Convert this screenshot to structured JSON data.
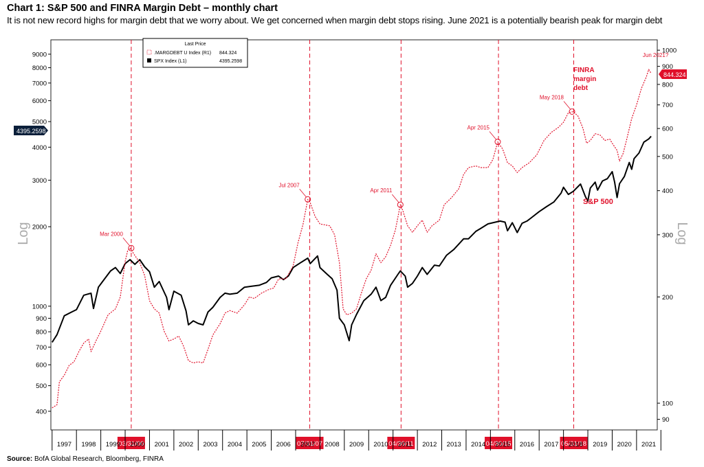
{
  "header": {
    "title": "Chart 1: S&P 500 and FINRA Margin Debt – monthly chart",
    "subtitle": "It is not new record highs for margin debt that we worry about. We get concerned when margin debt stops rising. June 2021 is a potentially bearish peak for margin debt"
  },
  "source": {
    "label": "Source:",
    "text": "BofA Global Research, Bloomberg, FINRA"
  },
  "chart_data": {
    "type": "line",
    "left_axis": {
      "label": "Log",
      "scale": "log",
      "ticks": [
        400,
        500,
        600,
        700,
        800,
        900,
        1000,
        2000,
        3000,
        4000,
        5000,
        6000,
        7000,
        8000,
        9000
      ],
      "ylim": [
        340,
        10200
      ]
    },
    "right_axis": {
      "label": "Log",
      "scale": "log",
      "ticks": [
        90,
        100,
        200,
        300,
        400,
        500,
        600,
        700,
        800,
        900,
        1000
      ],
      "ylim": [
        84,
        1070
      ]
    },
    "x_axis": {
      "years": [
        1997,
        1998,
        1999,
        2000,
        2001,
        2002,
        2003,
        2004,
        2005,
        2006,
        2007,
        2008,
        2009,
        2010,
        2011,
        2012,
        2013,
        2014,
        2015,
        2016,
        2017,
        2018,
        2019,
        2020,
        2021
      ],
      "xlim": [
        1996.95,
        2021.85
      ]
    },
    "legend": {
      "title": "Last Price",
      "position": "top-left",
      "entries": [
        {
          "label": ".MARGDEBT U Index  (R1)",
          "value": "844.324"
        },
        {
          "label": "SPX Index  (L1)",
          "value": "4395.2598"
        }
      ]
    },
    "series": [
      {
        "name": "SPX Index",
        "axis": "left",
        "color": "#000000",
        "style": "solid",
        "last_value": "4395.2598",
        "points": [
          [
            1997.0,
            730
          ],
          [
            1997.2,
            780
          ],
          [
            1997.5,
            920
          ],
          [
            1997.8,
            950
          ],
          [
            1998.0,
            970
          ],
          [
            1998.3,
            1100
          ],
          [
            1998.6,
            1120
          ],
          [
            1998.7,
            980
          ],
          [
            1998.9,
            1180
          ],
          [
            1999.1,
            1250
          ],
          [
            1999.4,
            1360
          ],
          [
            1999.6,
            1400
          ],
          [
            1999.8,
            1330
          ],
          [
            2000.0,
            1450
          ],
          [
            2000.2,
            1500
          ],
          [
            2000.4,
            1440
          ],
          [
            2000.6,
            1500
          ],
          [
            2000.8,
            1410
          ],
          [
            2001.0,
            1350
          ],
          [
            2001.2,
            1180
          ],
          [
            2001.4,
            1240
          ],
          [
            2001.7,
            1080
          ],
          [
            2001.8,
            970
          ],
          [
            2002.0,
            1140
          ],
          [
            2002.3,
            1100
          ],
          [
            2002.5,
            960
          ],
          [
            2002.6,
            850
          ],
          [
            2002.8,
            880
          ],
          [
            2003.0,
            860
          ],
          [
            2003.2,
            850
          ],
          [
            2003.4,
            950
          ],
          [
            2003.6,
            990
          ],
          [
            2003.9,
            1080
          ],
          [
            2004.1,
            1120
          ],
          [
            2004.3,
            1110
          ],
          [
            2004.6,
            1120
          ],
          [
            2004.9,
            1180
          ],
          [
            2005.2,
            1190
          ],
          [
            2005.5,
            1200
          ],
          [
            2005.8,
            1230
          ],
          [
            2006.0,
            1280
          ],
          [
            2006.3,
            1300
          ],
          [
            2006.5,
            1260
          ],
          [
            2006.7,
            1300
          ],
          [
            2006.9,
            1400
          ],
          [
            2007.2,
            1460
          ],
          [
            2007.5,
            1520
          ],
          [
            2007.6,
            1450
          ],
          [
            2007.9,
            1550
          ],
          [
            2008.0,
            1400
          ],
          [
            2008.3,
            1320
          ],
          [
            2008.5,
            1270
          ],
          [
            2008.7,
            1150
          ],
          [
            2008.8,
            900
          ],
          [
            2009.0,
            850
          ],
          [
            2009.2,
            740
          ],
          [
            2009.3,
            850
          ],
          [
            2009.5,
            930
          ],
          [
            2009.8,
            1050
          ],
          [
            2010.1,
            1110
          ],
          [
            2010.3,
            1180
          ],
          [
            2010.5,
            1050
          ],
          [
            2010.7,
            1080
          ],
          [
            2010.9,
            1200
          ],
          [
            2011.2,
            1320
          ],
          [
            2011.3,
            1360
          ],
          [
            2011.5,
            1300
          ],
          [
            2011.6,
            1180
          ],
          [
            2011.8,
            1220
          ],
          [
            2012.0,
            1300
          ],
          [
            2012.2,
            1400
          ],
          [
            2012.4,
            1320
          ],
          [
            2012.7,
            1430
          ],
          [
            2012.9,
            1420
          ],
          [
            2013.2,
            1560
          ],
          [
            2013.5,
            1640
          ],
          [
            2013.9,
            1800
          ],
          [
            2014.1,
            1800
          ],
          [
            2014.4,
            1920
          ],
          [
            2014.6,
            1970
          ],
          [
            2014.9,
            2050
          ],
          [
            2015.2,
            2080
          ],
          [
            2015.4,
            2100
          ],
          [
            2015.6,
            2080
          ],
          [
            2015.7,
            1930
          ],
          [
            2015.9,
            2070
          ],
          [
            2016.1,
            1900
          ],
          [
            2016.3,
            2060
          ],
          [
            2016.5,
            2100
          ],
          [
            2016.7,
            2170
          ],
          [
            2017.0,
            2280
          ],
          [
            2017.3,
            2380
          ],
          [
            2017.6,
            2480
          ],
          [
            2017.9,
            2680
          ],
          [
            2018.0,
            2820
          ],
          [
            2018.2,
            2650
          ],
          [
            2018.4,
            2720
          ],
          [
            2018.7,
            2900
          ],
          [
            2018.9,
            2600
          ],
          [
            2019.0,
            2500
          ],
          [
            2019.1,
            2800
          ],
          [
            2019.3,
            2950
          ],
          [
            2019.4,
            2750
          ],
          [
            2019.6,
            2980
          ],
          [
            2019.8,
            3040
          ],
          [
            2020.0,
            3230
          ],
          [
            2020.1,
            2950
          ],
          [
            2020.2,
            2580
          ],
          [
            2020.3,
            2910
          ],
          [
            2020.5,
            3100
          ],
          [
            2020.7,
            3500
          ],
          [
            2020.8,
            3300
          ],
          [
            2020.9,
            3620
          ],
          [
            2021.1,
            3800
          ],
          [
            2021.3,
            4180
          ],
          [
            2021.5,
            4300
          ],
          [
            2021.6,
            4400
          ]
        ]
      },
      {
        "name": ".MARGDEBT U Index",
        "axis": "right",
        "color": "#e0102a",
        "style": "dotted",
        "last_value": "844.324",
        "points": [
          [
            1997.0,
            97
          ],
          [
            1997.2,
            99
          ],
          [
            1997.3,
            115
          ],
          [
            1997.5,
            120
          ],
          [
            1997.7,
            128
          ],
          [
            1997.9,
            131
          ],
          [
            1998.1,
            140
          ],
          [
            1998.3,
            148
          ],
          [
            1998.5,
            152
          ],
          [
            1998.6,
            140
          ],
          [
            1998.8,
            150
          ],
          [
            1999.0,
            160
          ],
          [
            1999.3,
            178
          ],
          [
            1999.6,
            185
          ],
          [
            1999.8,
            200
          ],
          [
            2000.0,
            252
          ],
          [
            2000.1,
            270
          ],
          [
            2000.2,
            275
          ],
          [
            2000.4,
            262
          ],
          [
            2000.6,
            250
          ],
          [
            2000.8,
            230
          ],
          [
            2001.0,
            195
          ],
          [
            2001.2,
            185
          ],
          [
            2001.4,
            180
          ],
          [
            2001.6,
            160
          ],
          [
            2001.8,
            150
          ],
          [
            2002.0,
            152
          ],
          [
            2002.2,
            155
          ],
          [
            2002.4,
            145
          ],
          [
            2002.6,
            132
          ],
          [
            2002.8,
            130
          ],
          [
            2003.0,
            131
          ],
          [
            2003.2,
            130
          ],
          [
            2003.4,
            142
          ],
          [
            2003.6,
            156
          ],
          [
            2003.9,
            168
          ],
          [
            2004.1,
            180
          ],
          [
            2004.3,
            183
          ],
          [
            2004.6,
            180
          ],
          [
            2004.9,
            190
          ],
          [
            2005.1,
            200
          ],
          [
            2005.3,
            198
          ],
          [
            2005.6,
            205
          ],
          [
            2005.9,
            210
          ],
          [
            2006.1,
            212
          ],
          [
            2006.3,
            225
          ],
          [
            2006.6,
            225
          ],
          [
            2006.9,
            245
          ],
          [
            2007.1,
            285
          ],
          [
            2007.3,
            320
          ],
          [
            2007.5,
            378
          ],
          [
            2007.6,
            370
          ],
          [
            2007.8,
            338
          ],
          [
            2008.0,
            322
          ],
          [
            2008.2,
            320
          ],
          [
            2008.4,
            318
          ],
          [
            2008.6,
            300
          ],
          [
            2008.8,
            250
          ],
          [
            2008.95,
            185
          ],
          [
            2009.1,
            178
          ],
          [
            2009.3,
            180
          ],
          [
            2009.5,
            185
          ],
          [
            2009.7,
            205
          ],
          [
            2009.9,
            225
          ],
          [
            2010.1,
            238
          ],
          [
            2010.3,
            265
          ],
          [
            2010.5,
            250
          ],
          [
            2010.7,
            260
          ],
          [
            2010.9,
            280
          ],
          [
            2011.1,
            310
          ],
          [
            2011.3,
            365
          ],
          [
            2011.4,
            352
          ],
          [
            2011.6,
            318
          ],
          [
            2011.8,
            305
          ],
          [
            2012.0,
            318
          ],
          [
            2012.2,
            330
          ],
          [
            2012.4,
            305
          ],
          [
            2012.6,
            318
          ],
          [
            2012.9,
            330
          ],
          [
            2013.1,
            365
          ],
          [
            2013.4,
            382
          ],
          [
            2013.7,
            405
          ],
          [
            2013.9,
            445
          ],
          [
            2014.1,
            465
          ],
          [
            2014.4,
            470
          ],
          [
            2014.6,
            465
          ],
          [
            2014.9,
            465
          ],
          [
            2015.1,
            490
          ],
          [
            2015.3,
            550
          ],
          [
            2015.5,
            525
          ],
          [
            2015.7,
            480
          ],
          [
            2015.9,
            470
          ],
          [
            2016.1,
            450
          ],
          [
            2016.3,
            465
          ],
          [
            2016.6,
            480
          ],
          [
            2016.9,
            505
          ],
          [
            2017.2,
            555
          ],
          [
            2017.5,
            585
          ],
          [
            2017.8,
            605
          ],
          [
            2018.0,
            625
          ],
          [
            2018.2,
            665
          ],
          [
            2018.4,
            670
          ],
          [
            2018.6,
            650
          ],
          [
            2018.8,
            600
          ],
          [
            2018.95,
            545
          ],
          [
            2019.1,
            555
          ],
          [
            2019.3,
            580
          ],
          [
            2019.5,
            575
          ],
          [
            2019.7,
            555
          ],
          [
            2019.9,
            560
          ],
          [
            2020.0,
            545
          ],
          [
            2020.2,
            520
          ],
          [
            2020.3,
            485
          ],
          [
            2020.45,
            510
          ],
          [
            2020.6,
            560
          ],
          [
            2020.8,
            640
          ],
          [
            2021.0,
            700
          ],
          [
            2021.2,
            780
          ],
          [
            2021.4,
            840
          ],
          [
            2021.5,
            882
          ],
          [
            2021.6,
            860
          ]
        ]
      }
    ],
    "vlines": [
      {
        "label": "03/31/00",
        "x": 2000.25
      },
      {
        "label": "07/31/07",
        "x": 2007.58
      },
      {
        "label": "04/30/11",
        "x": 2011.33
      },
      {
        "label": "04/30/15",
        "x": 2015.33
      },
      {
        "label": "05/31/18",
        "x": 2018.42
      }
    ],
    "peaks": [
      {
        "label": "Mar 2000",
        "x": 2000.25,
        "y": 275
      },
      {
        "label": "Jul 2007",
        "x": 2007.5,
        "y": 378
      },
      {
        "label": "Apr 2011",
        "x": 2011.3,
        "y": 365
      },
      {
        "label": "Apr 2015",
        "x": 2015.3,
        "y": 550
      },
      {
        "label": "May 2018",
        "x": 2018.35,
        "y": 670
      },
      {
        "label": "Jun 2021?",
        "x": 2021.5,
        "y": 882
      }
    ],
    "annotations": [
      {
        "text": "FINRA margin debt",
        "color": "#e0102a"
      },
      {
        "text": "S&P 500",
        "color": "#e0102a"
      }
    ],
    "badges": {
      "left": "4395.2598",
      "right": "844.324"
    }
  }
}
